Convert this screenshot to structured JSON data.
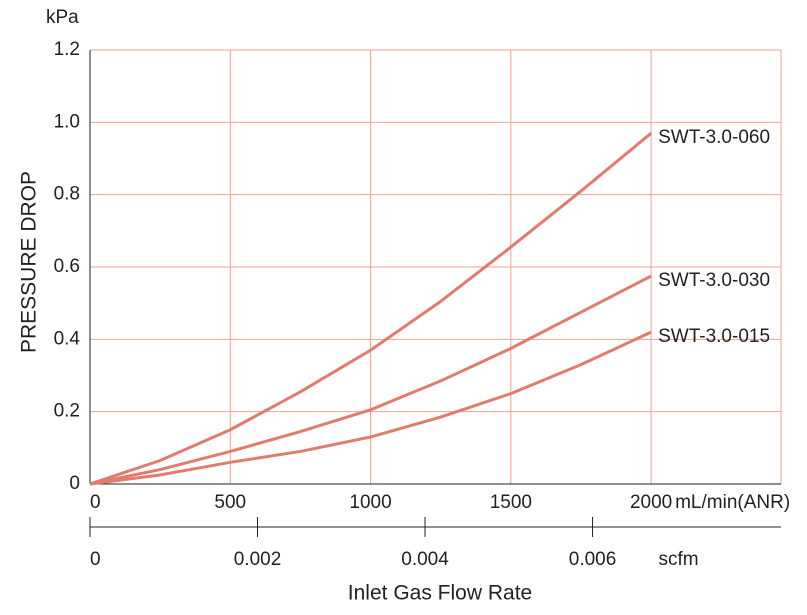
{
  "chart_data": {
    "type": "line",
    "y_unit": "kPa",
    "y_label": "PRESSURE DROP",
    "x_label": "Inlet Gas Flow Rate",
    "x_unit": "mL/min(ANR)",
    "x2_unit": "scfm",
    "x": [
      0,
      250,
      500,
      750,
      1000,
      1250,
      1500,
      1750,
      2000
    ],
    "series": [
      {
        "name": "SWT-3.0-060",
        "color": "#e07b6e",
        "values": [
          0,
          0.065,
          0.15,
          0.255,
          0.37,
          0.505,
          0.655,
          0.81,
          0.97
        ]
      },
      {
        "name": "SWT-3.0-030",
        "color": "#e07b6e",
        "values": [
          0,
          0.04,
          0.09,
          0.145,
          0.205,
          0.285,
          0.375,
          0.475,
          0.575
        ]
      },
      {
        "name": "SWT-3.0-015",
        "color": "#e07b6e",
        "values": [
          0,
          0.025,
          0.06,
          0.09,
          0.13,
          0.185,
          0.25,
          0.33,
          0.42
        ]
      }
    ],
    "xlim": [
      0,
      2463
    ],
    "xticks": [
      0,
      500,
      1000,
      1500,
      2000
    ],
    "ylim": [
      0,
      1.2
    ],
    "yticks": [
      0,
      0.2,
      0.4,
      0.6,
      0.8,
      {
        "value": 1,
        "label": "1.0"
      },
      1.2
    ],
    "x2lim": [
      0,
      0.00825
    ],
    "x2ticks": [
      0,
      0.002,
      0.004,
      0.006
    ],
    "grid": true,
    "grid_color": "#e8a596"
  }
}
